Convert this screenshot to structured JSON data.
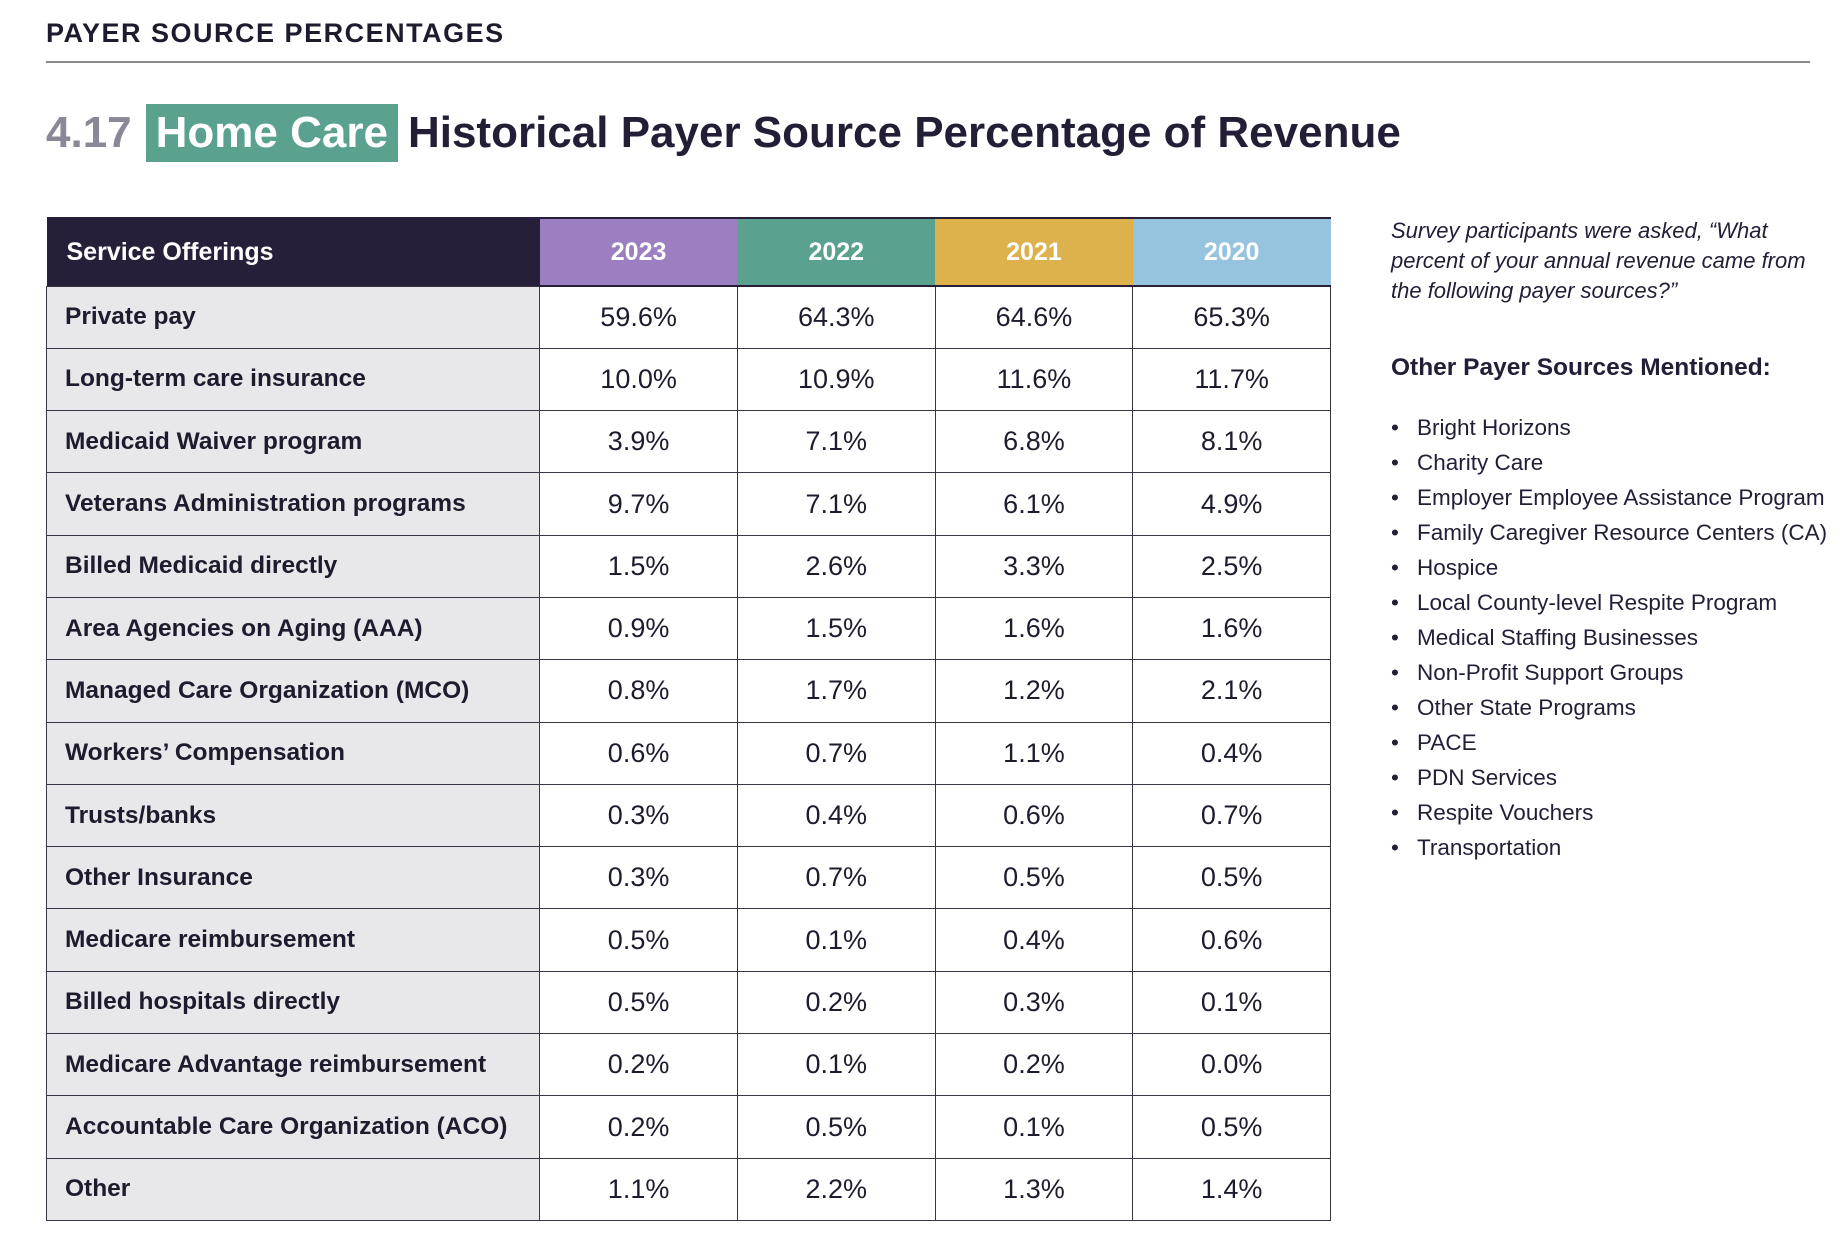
{
  "section_heading": "PAYER SOURCE PERCENTAGES",
  "title": {
    "number": "4.17",
    "tag": "Home Care",
    "text": "Historical Payer Source Percentage of Revenue"
  },
  "table": {
    "header_label": "Service Offerings",
    "years": [
      {
        "label": "2023",
        "color": "#9b7fc1"
      },
      {
        "label": "2022",
        "color": "#5aa190"
      },
      {
        "label": "2021",
        "color": "#ddb24d"
      },
      {
        "label": "2020",
        "color": "#96c4de"
      }
    ],
    "rows": [
      {
        "label": "Private pay",
        "values": [
          "59.6%",
          "64.3%",
          "64.6%",
          "65.3%"
        ]
      },
      {
        "label": "Long-term care insurance",
        "values": [
          "10.0%",
          "10.9%",
          "11.6%",
          "11.7%"
        ]
      },
      {
        "label": "Medicaid Waiver program",
        "values": [
          "3.9%",
          "7.1%",
          "6.8%",
          "8.1%"
        ]
      },
      {
        "label": "Veterans Administration programs",
        "values": [
          "9.7%",
          "7.1%",
          "6.1%",
          "4.9%"
        ]
      },
      {
        "label": "Billed Medicaid directly",
        "values": [
          "1.5%",
          "2.6%",
          "3.3%",
          "2.5%"
        ]
      },
      {
        "label": "Area Agencies on Aging (AAA)",
        "values": [
          "0.9%",
          "1.5%",
          "1.6%",
          "1.6%"
        ]
      },
      {
        "label": "Managed Care Organization (MCO)",
        "values": [
          "0.8%",
          "1.7%",
          "1.2%",
          "2.1%"
        ]
      },
      {
        "label": "Workers’ Compensation",
        "values": [
          "0.6%",
          "0.7%",
          "1.1%",
          "0.4%"
        ]
      },
      {
        "label": "Trusts/banks",
        "values": [
          "0.3%",
          "0.4%",
          "0.6%",
          "0.7%"
        ]
      },
      {
        "label": "Other Insurance",
        "values": [
          "0.3%",
          "0.7%",
          "0.5%",
          "0.5%"
        ]
      },
      {
        "label": "Medicare reimbursement",
        "values": [
          "0.5%",
          "0.1%",
          "0.4%",
          "0.6%"
        ]
      },
      {
        "label": "Billed hospitals directly",
        "values": [
          "0.5%",
          "0.2%",
          "0.3%",
          "0.1%"
        ]
      },
      {
        "label": "Medicare Advantage reimbursement",
        "values": [
          "0.2%",
          "0.1%",
          "0.2%",
          "0.0%"
        ]
      },
      {
        "label": "Accountable Care Organization (ACO)",
        "values": [
          "0.2%",
          "0.5%",
          "0.1%",
          "0.5%"
        ]
      },
      {
        "label": "Other",
        "values": [
          "1.1%",
          "2.2%",
          "1.3%",
          "1.4%"
        ]
      }
    ]
  },
  "sidebar": {
    "question": "Survey participants were asked, “What percent of your annual revenue came from the following payer sources?”",
    "other_heading": "Other Payer Sources Mentioned:",
    "bullet": "•",
    "other_sources": [
      "Bright Horizons",
      "Charity Care",
      "Employer Employee Assistance Program",
      "Family Caregiver Resource Centers (CA)",
      "Hospice",
      "Local County-level Respite Program",
      "Medical Staffing Businesses",
      "Non-Profit Support Groups",
      "Other State Programs",
      "PACE",
      "PDN Services",
      "Respite Vouchers",
      "Transportation"
    ]
  }
}
